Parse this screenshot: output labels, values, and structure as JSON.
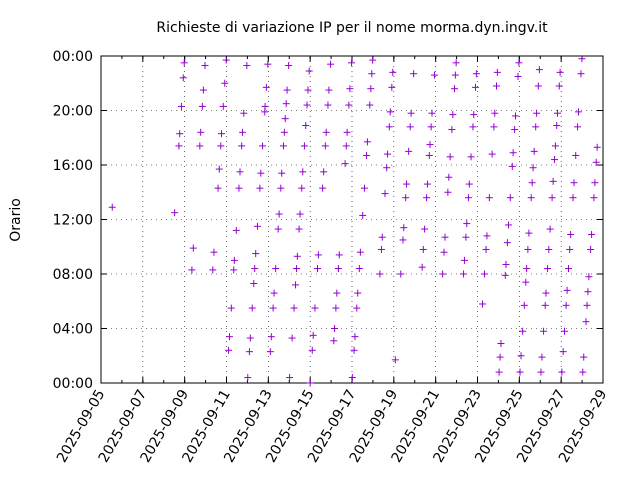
{
  "chart_data": {
    "type": "scatter",
    "title": "Richieste di variazione IP per il nome morma.dyn.ingv.it",
    "xlabel": "",
    "ylabel": "Orario",
    "x_axis": {
      "start_date": "2025-09-05",
      "end_date": "2025-09-29",
      "tick_labels": [
        "2025-09-05",
        "2025-09-07",
        "2025-09-09",
        "2025-09-11",
        "2025-09-13",
        "2025-09-15",
        "2025-09-17",
        "2025-09-19",
        "2025-09-21",
        "2025-09-23",
        "2025-09-25",
        "2025-09-27",
        "2025-09-29"
      ]
    },
    "y_axis": {
      "range_hours": [
        0,
        24
      ],
      "tick_labels": [
        "00:00",
        "04:00",
        "08:00",
        "12:00",
        "16:00",
        "20:00",
        "00:00"
      ]
    },
    "grid": true,
    "legend": "none",
    "marker": "+",
    "color": "#9400d3",
    "points": [
      {
        "date": "2025-09-05",
        "hour": 12.9
      },
      {
        "date": "2025-09-08",
        "hour": 23.5
      },
      {
        "date": "2025-09-08",
        "hour": 22.4
      },
      {
        "date": "2025-09-08",
        "hour": 20.3
      },
      {
        "date": "2025-09-08",
        "hour": 18.3
      },
      {
        "date": "2025-09-08",
        "hour": 17.4
      },
      {
        "date": "2025-09-08",
        "hour": 12.5
      },
      {
        "date": "2025-09-09",
        "hour": 23.3
      },
      {
        "date": "2025-09-09",
        "hour": 21.5
      },
      {
        "date": "2025-09-09",
        "hour": 20.3
      },
      {
        "date": "2025-09-09",
        "hour": 18.4
      },
      {
        "date": "2025-09-09",
        "hour": 17.4
      },
      {
        "date": "2025-09-09",
        "hour": 9.9
      },
      {
        "date": "2025-09-09",
        "hour": 8.3
      },
      {
        "date": "2025-09-10",
        "hour": 23.7
      },
      {
        "date": "2025-09-10",
        "hour": 22.0
      },
      {
        "date": "2025-09-10",
        "hour": 20.3
      },
      {
        "date": "2025-09-10",
        "hour": 18.3
      },
      {
        "date": "2025-09-10",
        "hour": 17.4
      },
      {
        "date": "2025-09-10",
        "hour": 15.7
      },
      {
        "date": "2025-09-10",
        "hour": 14.3
      },
      {
        "date": "2025-09-10",
        "hour": 9.6
      },
      {
        "date": "2025-09-10",
        "hour": 8.3
      },
      {
        "date": "2025-09-11",
        "hour": 23.3
      },
      {
        "date": "2025-09-11",
        "hour": 19.8
      },
      {
        "date": "2025-09-11",
        "hour": 18.4
      },
      {
        "date": "2025-09-11",
        "hour": 17.4
      },
      {
        "date": "2025-09-11",
        "hour": 15.5
      },
      {
        "date": "2025-09-11",
        "hour": 14.3
      },
      {
        "date": "2025-09-11",
        "hour": 11.2
      },
      {
        "date": "2025-09-11",
        "hour": 9.0
      },
      {
        "date": "2025-09-11",
        "hour": 8.3
      },
      {
        "date": "2025-09-11",
        "hour": 5.5
      },
      {
        "date": "2025-09-11",
        "hour": 3.4
      },
      {
        "date": "2025-09-11",
        "hour": 2.4
      },
      {
        "date": "2025-09-12",
        "hour": 23.4
      },
      {
        "date": "2025-09-12",
        "hour": 21.7
      },
      {
        "date": "2025-09-12",
        "hour": 20.3
      },
      {
        "date": "2025-09-12",
        "hour": 19.9
      },
      {
        "date": "2025-09-12",
        "hour": 17.4
      },
      {
        "date": "2025-09-12",
        "hour": 15.4
      },
      {
        "date": "2025-09-12",
        "hour": 14.3
      },
      {
        "date": "2025-09-12",
        "hour": 11.5
      },
      {
        "date": "2025-09-12",
        "hour": 9.5
      },
      {
        "date": "2025-09-12",
        "hour": 8.4
      },
      {
        "date": "2025-09-12",
        "hour": 7.3
      },
      {
        "date": "2025-09-12",
        "hour": 5.5
      },
      {
        "date": "2025-09-12",
        "hour": 3.3
      },
      {
        "date": "2025-09-12",
        "hour": 2.3
      },
      {
        "date": "2025-09-12",
        "hour": 0.4
      },
      {
        "date": "2025-09-13",
        "hour": 23.3
      },
      {
        "date": "2025-09-13",
        "hour": 21.5
      },
      {
        "date": "2025-09-13",
        "hour": 20.5
      },
      {
        "date": "2025-09-13",
        "hour": 19.4
      },
      {
        "date": "2025-09-13",
        "hour": 18.4
      },
      {
        "date": "2025-09-13",
        "hour": 17.4
      },
      {
        "date": "2025-09-13",
        "hour": 15.4
      },
      {
        "date": "2025-09-13",
        "hour": 14.3
      },
      {
        "date": "2025-09-13",
        "hour": 12.4
      },
      {
        "date": "2025-09-13",
        "hour": 11.3
      },
      {
        "date": "2025-09-13",
        "hour": 8.4
      },
      {
        "date": "2025-09-13",
        "hour": 6.6
      },
      {
        "date": "2025-09-13",
        "hour": 5.5
      },
      {
        "date": "2025-09-13",
        "hour": 3.4
      },
      {
        "date": "2025-09-13",
        "hour": 2.3
      },
      {
        "date": "2025-09-14",
        "hour": 22.9
      },
      {
        "date": "2025-09-14",
        "hour": 21.5
      },
      {
        "date": "2025-09-14",
        "hour": 20.4
      },
      {
        "date": "2025-09-14",
        "hour": 18.9
      },
      {
        "date": "2025-09-14",
        "hour": 17.4
      },
      {
        "date": "2025-09-14",
        "hour": 15.5
      },
      {
        "date": "2025-09-14",
        "hour": 14.3
      },
      {
        "date": "2025-09-14",
        "hour": 12.4
      },
      {
        "date": "2025-09-14",
        "hour": 11.3
      },
      {
        "date": "2025-09-14",
        "hour": 9.3
      },
      {
        "date": "2025-09-14",
        "hour": 8.4
      },
      {
        "date": "2025-09-14",
        "hour": 7.2
      },
      {
        "date": "2025-09-14",
        "hour": 5.5
      },
      {
        "date": "2025-09-14",
        "hour": 3.3
      },
      {
        "date": "2025-09-14",
        "hour": 0.4
      },
      {
        "date": "2025-09-15",
        "hour": 23.4
      },
      {
        "date": "2025-09-15",
        "hour": 21.5
      },
      {
        "date": "2025-09-15",
        "hour": 20.4
      },
      {
        "date": "2025-09-15",
        "hour": 18.4
      },
      {
        "date": "2025-09-15",
        "hour": 17.4
      },
      {
        "date": "2025-09-15",
        "hour": 15.5
      },
      {
        "date": "2025-09-15",
        "hour": 14.3
      },
      {
        "date": "2025-09-15",
        "hour": 9.4
      },
      {
        "date": "2025-09-15",
        "hour": 8.4
      },
      {
        "date": "2025-09-15",
        "hour": 5.5
      },
      {
        "date": "2025-09-15",
        "hour": 3.5
      },
      {
        "date": "2025-09-15",
        "hour": 2.4
      },
      {
        "date": "2025-09-15",
        "hour": 0.0
      },
      {
        "date": "2025-09-16",
        "hour": 23.5
      },
      {
        "date": "2025-09-16",
        "hour": 21.6
      },
      {
        "date": "2025-09-16",
        "hour": 20.4
      },
      {
        "date": "2025-09-16",
        "hour": 18.4
      },
      {
        "date": "2025-09-16",
        "hour": 17.4
      },
      {
        "date": "2025-09-16",
        "hour": 16.1
      },
      {
        "date": "2025-09-16",
        "hour": 9.4
      },
      {
        "date": "2025-09-16",
        "hour": 8.4
      },
      {
        "date": "2025-09-16",
        "hour": 6.6
      },
      {
        "date": "2025-09-16",
        "hour": 5.5
      },
      {
        "date": "2025-09-16",
        "hour": 4.0
      },
      {
        "date": "2025-09-16",
        "hour": 3.1
      },
      {
        "date": "2025-09-17",
        "hour": 23.7
      },
      {
        "date": "2025-09-17",
        "hour": 22.7
      },
      {
        "date": "2025-09-17",
        "hour": 21.6
      },
      {
        "date": "2025-09-17",
        "hour": 20.4
      },
      {
        "date": "2025-09-17",
        "hour": 17.7
      },
      {
        "date": "2025-09-17",
        "hour": 16.7
      },
      {
        "date": "2025-09-17",
        "hour": 14.3
      },
      {
        "date": "2025-09-17",
        "hour": 12.3
      },
      {
        "date": "2025-09-17",
        "hour": 9.6
      },
      {
        "date": "2025-09-17",
        "hour": 8.4
      },
      {
        "date": "2025-09-17",
        "hour": 6.6
      },
      {
        "date": "2025-09-17",
        "hour": 5.5
      },
      {
        "date": "2025-09-17",
        "hour": 3.4
      },
      {
        "date": "2025-09-17",
        "hour": 2.4
      },
      {
        "date": "2025-09-17",
        "hour": 0.4
      },
      {
        "date": "2025-09-18",
        "hour": 22.8
      },
      {
        "date": "2025-09-18",
        "hour": 21.7
      },
      {
        "date": "2025-09-18",
        "hour": 19.9
      },
      {
        "date": "2025-09-18",
        "hour": 18.8
      },
      {
        "date": "2025-09-18",
        "hour": 16.8
      },
      {
        "date": "2025-09-18",
        "hour": 15.8
      },
      {
        "date": "2025-09-18",
        "hour": 13.9
      },
      {
        "date": "2025-09-18",
        "hour": 10.7
      },
      {
        "date": "2025-09-18",
        "hour": 9.8
      },
      {
        "date": "2025-09-18",
        "hour": 8.0
      },
      {
        "date": "2025-09-19",
        "hour": 22.7
      },
      {
        "date": "2025-09-19",
        "hour": 19.8
      },
      {
        "date": "2025-09-19",
        "hour": 18.8
      },
      {
        "date": "2025-09-19",
        "hour": 17.0
      },
      {
        "date": "2025-09-19",
        "hour": 14.6
      },
      {
        "date": "2025-09-19",
        "hour": 13.6
      },
      {
        "date": "2025-09-19",
        "hour": 11.4
      },
      {
        "date": "2025-09-19",
        "hour": 10.5
      },
      {
        "date": "2025-09-19",
        "hour": 8.0
      },
      {
        "date": "2025-09-19",
        "hour": 1.7
      },
      {
        "date": "2025-09-20",
        "hour": 22.6
      },
      {
        "date": "2025-09-20",
        "hour": 19.8
      },
      {
        "date": "2025-09-20",
        "hour": 18.8
      },
      {
        "date": "2025-09-20",
        "hour": 17.5
      },
      {
        "date": "2025-09-20",
        "hour": 16.7
      },
      {
        "date": "2025-09-20",
        "hour": 14.6
      },
      {
        "date": "2025-09-20",
        "hour": 13.6
      },
      {
        "date": "2025-09-20",
        "hour": 11.3
      },
      {
        "date": "2025-09-20",
        "hour": 9.8
      },
      {
        "date": "2025-09-20",
        "hour": 8.5
      },
      {
        "date": "2025-09-21",
        "hour": 23.5
      },
      {
        "date": "2025-09-21",
        "hour": 22.6
      },
      {
        "date": "2025-09-21",
        "hour": 21.6
      },
      {
        "date": "2025-09-21",
        "hour": 19.7
      },
      {
        "date": "2025-09-21",
        "hour": 18.6
      },
      {
        "date": "2025-09-21",
        "hour": 16.6
      },
      {
        "date": "2025-09-21",
        "hour": 15.1
      },
      {
        "date": "2025-09-21",
        "hour": 14.0
      },
      {
        "date": "2025-09-21",
        "hour": 10.7
      },
      {
        "date": "2025-09-21",
        "hour": 9.6
      },
      {
        "date": "2025-09-21",
        "hour": 8.0
      },
      {
        "date": "2025-09-22",
        "hour": 22.7
      },
      {
        "date": "2025-09-22",
        "hour": 21.7
      },
      {
        "date": "2025-09-22",
        "hour": 19.7
      },
      {
        "date": "2025-09-22",
        "hour": 18.8
      },
      {
        "date": "2025-09-22",
        "hour": 16.6
      },
      {
        "date": "2025-09-22",
        "hour": 14.6
      },
      {
        "date": "2025-09-22",
        "hour": 13.6
      },
      {
        "date": "2025-09-22",
        "hour": 11.7
      },
      {
        "date": "2025-09-22",
        "hour": 10.7
      },
      {
        "date": "2025-09-22",
        "hour": 9.0
      },
      {
        "date": "2025-09-22",
        "hour": 8.0
      },
      {
        "date": "2025-09-23",
        "hour": 22.8
      },
      {
        "date": "2025-09-23",
        "hour": 21.8
      },
      {
        "date": "2025-09-23",
        "hour": 19.8
      },
      {
        "date": "2025-09-23",
        "hour": 18.8
      },
      {
        "date": "2025-09-23",
        "hour": 16.8
      },
      {
        "date": "2025-09-23",
        "hour": 13.6
      },
      {
        "date": "2025-09-23",
        "hour": 10.8
      },
      {
        "date": "2025-09-23",
        "hour": 9.8
      },
      {
        "date": "2025-09-23",
        "hour": 8.0
      },
      {
        "date": "2025-09-23",
        "hour": 5.8
      },
      {
        "date": "2025-09-24",
        "hour": 23.5
      },
      {
        "date": "2025-09-24",
        "hour": 22.5
      },
      {
        "date": "2025-09-24",
        "hour": 19.6
      },
      {
        "date": "2025-09-24",
        "hour": 18.6
      },
      {
        "date": "2025-09-24",
        "hour": 16.9
      },
      {
        "date": "2025-09-24",
        "hour": 15.9
      },
      {
        "date": "2025-09-24",
        "hour": 13.6
      },
      {
        "date": "2025-09-24",
        "hour": 11.6
      },
      {
        "date": "2025-09-24",
        "hour": 10.3
      },
      {
        "date": "2025-09-24",
        "hour": 8.7
      },
      {
        "date": "2025-09-24",
        "hour": 7.9
      },
      {
        "date": "2025-09-24",
        "hour": 2.9
      },
      {
        "date": "2025-09-24",
        "hour": 1.9
      },
      {
        "date": "2025-09-24",
        "hour": 0.8
      },
      {
        "date": "2025-09-25",
        "hour": 23.0
      },
      {
        "date": "2025-09-25",
        "hour": 21.8
      },
      {
        "date": "2025-09-25",
        "hour": 19.8
      },
      {
        "date": "2025-09-25",
        "hour": 18.8
      },
      {
        "date": "2025-09-25",
        "hour": 17.0
      },
      {
        "date": "2025-09-25",
        "hour": 15.8
      },
      {
        "date": "2025-09-25",
        "hour": 14.7
      },
      {
        "date": "2025-09-25",
        "hour": 13.6
      },
      {
        "date": "2025-09-25",
        "hour": 11.0
      },
      {
        "date": "2025-09-25",
        "hour": 9.8
      },
      {
        "date": "2025-09-25",
        "hour": 8.4
      },
      {
        "date": "2025-09-25",
        "hour": 7.4
      },
      {
        "date": "2025-09-25",
        "hour": 5.7
      },
      {
        "date": "2025-09-25",
        "hour": 3.8
      },
      {
        "date": "2025-09-25",
        "hour": 2.0
      },
      {
        "date": "2025-09-25",
        "hour": 0.8
      },
      {
        "date": "2025-09-26",
        "hour": 22.8
      },
      {
        "date": "2025-09-26",
        "hour": 21.8
      },
      {
        "date": "2025-09-26",
        "hour": 19.8
      },
      {
        "date": "2025-09-26",
        "hour": 18.9
      },
      {
        "date": "2025-09-26",
        "hour": 17.4
      },
      {
        "date": "2025-09-26",
        "hour": 16.4
      },
      {
        "date": "2025-09-26",
        "hour": 14.8
      },
      {
        "date": "2025-09-26",
        "hour": 13.6
      },
      {
        "date": "2025-09-26",
        "hour": 11.3
      },
      {
        "date": "2025-09-26",
        "hour": 9.8
      },
      {
        "date": "2025-09-26",
        "hour": 8.4
      },
      {
        "date": "2025-09-26",
        "hour": 6.6
      },
      {
        "date": "2025-09-26",
        "hour": 5.7
      },
      {
        "date": "2025-09-26",
        "hour": 3.8
      },
      {
        "date": "2025-09-26",
        "hour": 1.9
      },
      {
        "date": "2025-09-26",
        "hour": 0.8
      },
      {
        "date": "2025-09-27",
        "hour": 23.8
      },
      {
        "date": "2025-09-27",
        "hour": 22.7
      },
      {
        "date": "2025-09-27",
        "hour": 19.9
      },
      {
        "date": "2025-09-27",
        "hour": 18.8
      },
      {
        "date": "2025-09-27",
        "hour": 16.7
      },
      {
        "date": "2025-09-27",
        "hour": 14.7
      },
      {
        "date": "2025-09-27",
        "hour": 13.6
      },
      {
        "date": "2025-09-27",
        "hour": 10.9
      },
      {
        "date": "2025-09-27",
        "hour": 9.8
      },
      {
        "date": "2025-09-27",
        "hour": 8.4
      },
      {
        "date": "2025-09-27",
        "hour": 6.8
      },
      {
        "date": "2025-09-27",
        "hour": 5.7
      },
      {
        "date": "2025-09-27",
        "hour": 3.8
      },
      {
        "date": "2025-09-27",
        "hour": 2.3
      },
      {
        "date": "2025-09-27",
        "hour": 0.8
      },
      {
        "date": "2025-09-28",
        "hour": 17.3
      },
      {
        "date": "2025-09-28",
        "hour": 16.2
      },
      {
        "date": "2025-09-28",
        "hour": 14.7
      },
      {
        "date": "2025-09-28",
        "hour": 13.6
      },
      {
        "date": "2025-09-28",
        "hour": 10.9
      },
      {
        "date": "2025-09-28",
        "hour": 9.8
      },
      {
        "date": "2025-09-28",
        "hour": 7.8
      },
      {
        "date": "2025-09-28",
        "hour": 6.7
      },
      {
        "date": "2025-09-28",
        "hour": 5.7
      },
      {
        "date": "2025-09-28",
        "hour": 4.5
      },
      {
        "date": "2025-09-28",
        "hour": 1.9
      },
      {
        "date": "2025-09-28",
        "hour": 0.8
      }
    ]
  }
}
